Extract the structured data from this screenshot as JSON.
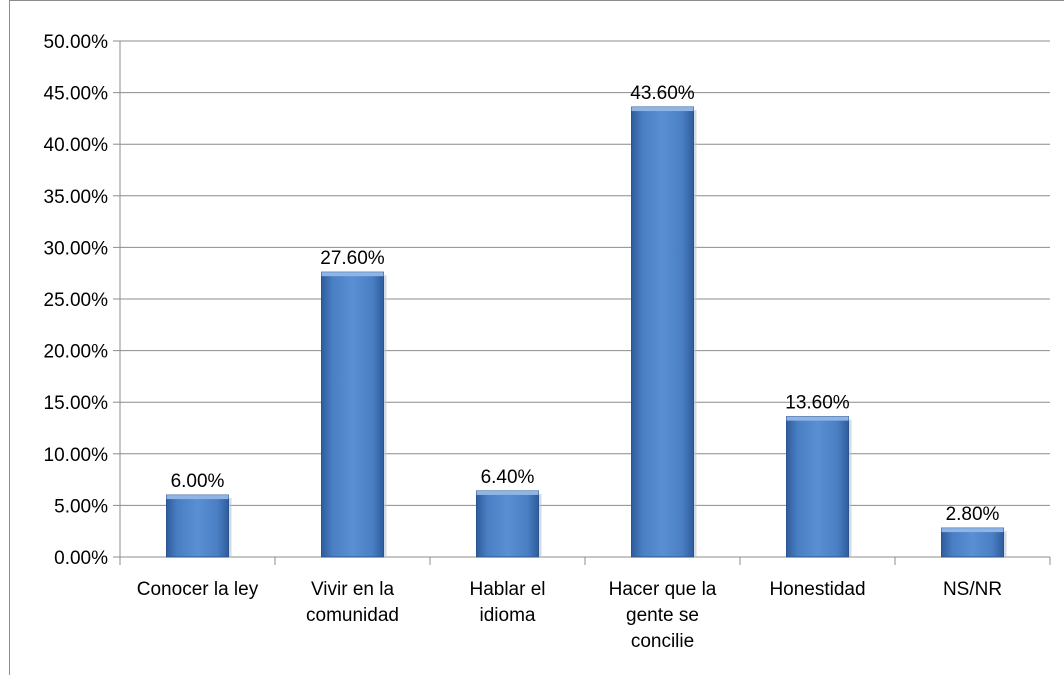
{
  "chart_data": {
    "type": "bar",
    "categories": [
      [
        "Conocer la ley"
      ],
      [
        "Vivir en la",
        "comunidad"
      ],
      [
        "Hablar el",
        "idioma"
      ],
      [
        "Hacer que la",
        "gente se",
        "concilie"
      ],
      [
        "Honestidad"
      ],
      [
        "NS/NR"
      ]
    ],
    "values": [
      6.0,
      27.6,
      6.4,
      43.6,
      13.6,
      2.8
    ],
    "data_labels": [
      "6.00%",
      "27.60%",
      "6.40%",
      "43.60%",
      "13.60%",
      "2.80%"
    ],
    "y_ticks": [
      "0.00%",
      "5.00%",
      "10.00%",
      "15.00%",
      "20.00%",
      "25.00%",
      "30.00%",
      "35.00%",
      "40.00%",
      "45.00%",
      "50.00%"
    ],
    "ylim": [
      0,
      50
    ],
    "grid": true,
    "bar_color": "#4a7fc4",
    "title": "",
    "xlabel": "",
    "ylabel": ""
  }
}
